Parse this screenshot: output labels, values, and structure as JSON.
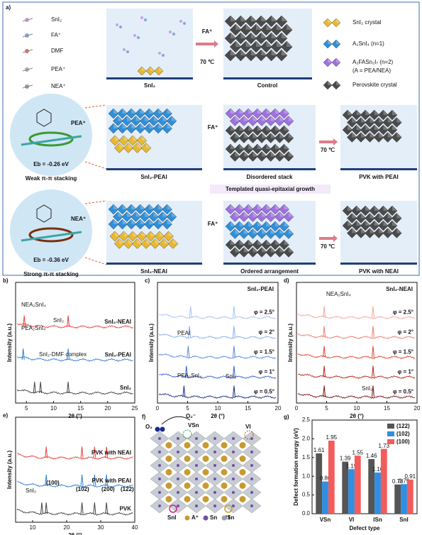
{
  "panel_a": {
    "label": "a)",
    "species": [
      "SnI₂",
      "FA⁺",
      "DMF",
      "PEA⁺",
      "NEA⁺"
    ],
    "legend": [
      "SnI₂ crystal",
      "A₂SnI₄ (n=1)",
      "A₂FASn₂I₇ (n=2)",
      "(A = PEA/NEA)",
      "Perovskite crystal"
    ],
    "boxes": [
      "SnI₂",
      "Control",
      "SnI₂-PEAI",
      "Disordered stack",
      "PVK with PEAI",
      "SnI₂-NEAI",
      "Ordered arrangement",
      "PVK with NEAI"
    ],
    "arrows": [
      "FA⁺",
      "70 ℃",
      "FA⁺",
      "70 ℃",
      "FA⁺",
      "70 ℃"
    ],
    "middle_note": "Templated quasi-epitaxial growth",
    "pea": {
      "ion": "PEA⁺",
      "energy": "Eb = -0.26 eV",
      "stacking": "Weak π-π stacking"
    },
    "nea": {
      "ion": "NEA⁺",
      "energy": "Eb = -0.36 eV",
      "stacking": "Strong π-π stacking"
    }
  },
  "chart_data": [
    {
      "type": "xrd",
      "label": "b)",
      "xlabel": "2θ (°)",
      "ylabel": "Intensity (a.u.)",
      "xlim": [
        3,
        25
      ],
      "xticks": [
        5,
        10,
        15,
        20,
        25
      ],
      "series": [
        {
          "name": "SnI₂-NEAI",
          "color": "#e8403c",
          "peaks": [
            4.6,
            12.7
          ]
        },
        {
          "name": "SnI₂-PEAI",
          "color": "#2f80d8",
          "peaks": [
            4.4,
            12.7
          ]
        },
        {
          "name": "SnI₂",
          "color": "#444444",
          "peaks": [
            6.5,
            7.6,
            12.7
          ]
        }
      ],
      "annotations": [
        "NEA₂SnI₄",
        "SnI₂",
        "PEA₂SnI₄",
        "SnI₂-DMF complex"
      ]
    },
    {
      "type": "xrd",
      "label": "c)",
      "title": "SnI₂-PEAI",
      "xlabel": "2θ (°)",
      "ylabel": "Intensity (a.u.)",
      "xlim": [
        0,
        20
      ],
      "xticks": [
        0,
        5,
        10,
        15,
        20
      ],
      "series": [
        {
          "name": "φ = 2.5°",
          "color": "#a9c4f2",
          "peaks": [
            5.5,
            12.7
          ]
        },
        {
          "name": "φ = 2°",
          "color": "#8aaeee",
          "peaks": [
            5.3,
            12.7
          ]
        },
        {
          "name": "φ = 1.5°",
          "color": "#5e88e0",
          "peaks": [
            5.1,
            12.7
          ]
        },
        {
          "name": "φ = 1°",
          "color": "#3a62c8",
          "peaks": [
            4.8,
            12.7
          ]
        },
        {
          "name": "φ = 0.5°",
          "color": "#1a2f86",
          "peaks": [
            4.4,
            12.7
          ]
        }
      ],
      "annotations": [
        "PEAI",
        "PEA₂SnI₄",
        "SnI₂"
      ]
    },
    {
      "type": "xrd",
      "label": "d)",
      "title": "SnI₂-NEAI",
      "xlabel": "2θ (°)",
      "ylabel": "Intensity (a.u.)",
      "xlim": [
        0,
        20
      ],
      "xticks": [
        0,
        5,
        10,
        15,
        20
      ],
      "series": [
        {
          "name": "φ = 2.5°",
          "color": "#f4a6a0",
          "peaks": [
            4.6,
            12.7
          ]
        },
        {
          "name": "φ = 2°",
          "color": "#ee7d74",
          "peaks": [
            4.6,
            12.7
          ]
        },
        {
          "name": "φ = 1.5°",
          "color": "#e0473c",
          "peaks": [
            4.6,
            12.7
          ]
        },
        {
          "name": "φ = 1°",
          "color": "#b42a22",
          "peaks": [
            4.6,
            12.7
          ]
        },
        {
          "name": "φ = 0.5°",
          "color": "#7a1410",
          "peaks": [
            4.6,
            12.7
          ]
        }
      ],
      "annotations": [
        "NEA₂SnI₄",
        "SnI₂"
      ]
    },
    {
      "type": "xrd",
      "label": "e)",
      "xlabel": "2θ (°)",
      "ylabel": "Intensity (a.u.)",
      "xlim": [
        5,
        40
      ],
      "xticks": [
        10,
        20,
        30,
        40
      ],
      "series": [
        {
          "name": "PVK with NEAI",
          "color": "#e8403c",
          "peaks": [
            14.0,
            24.5,
            28.2,
            31.7
          ]
        },
        {
          "name": "PVK with PEAI",
          "color": "#2f80d8",
          "peaks": [
            14.0,
            24.5,
            28.2,
            31.7
          ]
        },
        {
          "name": "PVK",
          "color": "#444444",
          "peaks": [
            12.7,
            14.0,
            24.5,
            28.2,
            31.7
          ]
        }
      ],
      "annotations": [
        "SnI₂",
        "(100)",
        "(102)",
        "(200)",
        "(122)"
      ]
    },
    {
      "type": "bar",
      "label": "g)",
      "xlabel": "Defect type",
      "ylabel": "Defect formation energy (eV)",
      "categories": [
        "VSn",
        "VI",
        "ISn",
        "SnI"
      ],
      "ylim": [
        0,
        2.5
      ],
      "yticks": [
        {
          "value": 0,
          "label": "0.0"
        },
        0.5,
        {
          "value": 1,
          "label": "1.0"
        },
        1.5,
        {
          "value": 2,
          "label": "2.0"
        },
        2.5
      ],
      "legend": "upper right",
      "series": [
        {
          "name": "(122)",
          "color": "#555555",
          "values": [
            1.61,
            1.39,
            1.46,
            0.78
          ],
          "value_labels": [
            "1.61",
            "1.39",
            "1.46",
            "0.78"
          ]
        },
        {
          "name": "(102)",
          "color": "#2f8fe0",
          "values": [
            0.86,
            1.19,
            1.1,
            0.79
          ],
          "value_labels": [
            "0.86",
            "1.19",
            "1.10",
            "0.79"
          ]
        },
        {
          "name": "(100)",
          "color": "#f25c5c",
          "values": [
            1.95,
            1.55,
            1.73,
            0.91
          ],
          "value_labels": [
            "1.95",
            "1.55",
            "1.73",
            "0.91"
          ]
        }
      ]
    }
  ],
  "panel_f": {
    "label": "f)",
    "labels": [
      "O₂",
      "O₂⁻",
      "VSn",
      "VI",
      "SnI",
      "ISn"
    ],
    "legend": [
      "A⁺",
      "Sn",
      "I"
    ]
  }
}
